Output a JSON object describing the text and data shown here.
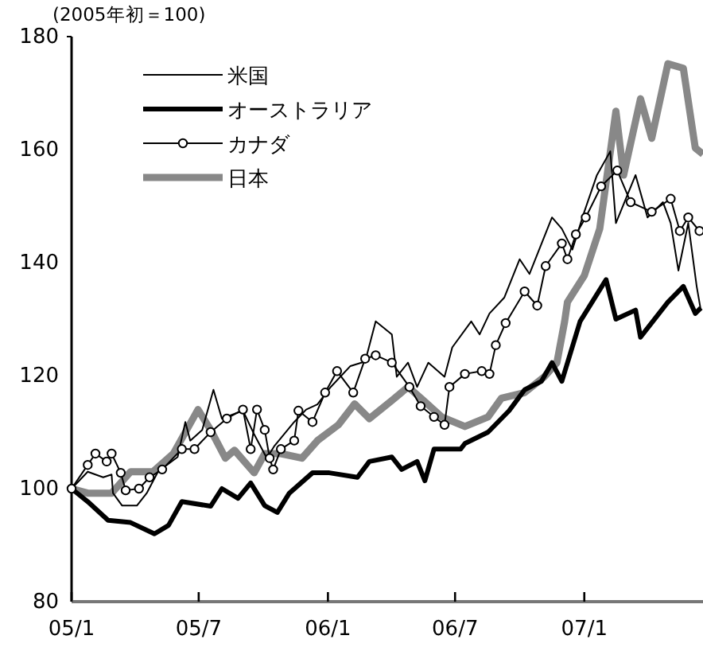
{
  "chart_data": {
    "type": "line",
    "ylabel": "(2005年初＝100)",
    "xlim": [
      "2005-01-01",
      "2007-06-19"
    ],
    "ylim": [
      80,
      180
    ],
    "yticks": [
      80,
      100,
      120,
      140,
      160,
      180
    ],
    "xticks": [
      {
        "value": "2005-01-01",
        "label": "05/1"
      },
      {
        "value": "2005-07-01",
        "label": "05/7"
      },
      {
        "value": "2006-01-01",
        "label": "06/1"
      },
      {
        "value": "2006-07-01",
        "label": "06/7"
      },
      {
        "value": "2007-01-01",
        "label": "07/1"
      }
    ],
    "grid": false,
    "legend": "top left",
    "line_style": "solid",
    "series": [
      {
        "name": "米国",
        "color": "#000000",
        "marker": "none",
        "x": [
          "2005-01-01",
          "2005-01-24",
          "2005-02-15",
          "2005-02-27",
          "2005-03-01",
          "2005-03-14",
          "2005-04-04",
          "2005-04-18",
          "2005-05-04",
          "2005-06-01",
          "2005-06-12",
          "2005-06-19",
          "2005-07-06",
          "2005-07-22",
          "2005-08-03",
          "2005-09-02",
          "2005-09-18",
          "2005-10-06",
          "2005-10-17",
          "2005-11-14",
          "2005-12-01",
          "2005-12-17",
          "2006-01-05",
          "2006-02-02",
          "2006-02-23",
          "2006-03-10",
          "2006-04-02",
          "2006-04-09",
          "2006-04-25",
          "2006-05-08",
          "2006-05-24",
          "2006-06-16",
          "2006-06-27",
          "2006-07-24",
          "2006-08-05",
          "2006-08-19",
          "2006-09-09",
          "2006-10-01",
          "2006-10-15",
          "2006-11-16",
          "2006-11-30",
          "2006-12-15",
          "2007-01-01",
          "2007-01-19",
          "2007-02-07",
          "2007-02-15",
          "2007-03-15",
          "2007-04-01",
          "2007-04-23",
          "2007-05-04",
          "2007-05-15",
          "2007-05-29",
          "2007-06-10",
          "2007-06-16"
        ],
        "values": [
          100,
          103,
          102,
          102.5,
          99.2,
          97,
          97,
          99.2,
          103,
          105.6,
          111.8,
          108.5,
          110.4,
          117.5,
          112.4,
          113.8,
          109.6,
          105.4,
          107.6,
          111.8,
          114,
          114.9,
          118,
          121.7,
          122.5,
          129.6,
          127.3,
          119.8,
          122.3,
          118,
          122.3,
          119.8,
          125,
          129.6,
          127.3,
          131,
          133.8,
          140.6,
          138,
          148,
          146,
          142.3,
          149,
          155.5,
          159.7,
          147,
          155.5,
          148,
          150.7,
          147,
          138.6,
          147,
          135.8,
          131.5
        ]
      },
      {
        "name": "オーストラリア",
        "color": "#000000",
        "marker": "none",
        "x": [
          "2005-01-01",
          "2005-01-24",
          "2005-02-22",
          "2005-03-26",
          "2005-04-29",
          "2005-05-19",
          "2005-06-07",
          "2005-07-18",
          "2005-08-03",
          "2005-08-26",
          "2005-09-13",
          "2005-10-03",
          "2005-10-21",
          "2005-11-07",
          "2005-12-10",
          "2006-01-03",
          "2006-02-12",
          "2006-03-01",
          "2006-04-02",
          "2006-04-16",
          "2006-05-08",
          "2006-05-19",
          "2006-06-01",
          "2006-07-09",
          "2006-07-15",
          "2006-08-17",
          "2006-09-16",
          "2006-10-08",
          "2006-11-01",
          "2006-11-16",
          "2006-11-30",
          "2006-12-26",
          "2007-02-01",
          "2007-02-15",
          "2007-03-15",
          "2007-03-22",
          "2007-04-30",
          "2007-05-22",
          "2007-06-08",
          "2007-06-16"
        ],
        "values": [
          100,
          97.7,
          94.4,
          94,
          92,
          93.5,
          97.7,
          96.9,
          100,
          98.3,
          101,
          97,
          95.8,
          99.2,
          102.8,
          102.8,
          102,
          104.8,
          105.6,
          103.4,
          104.8,
          101.4,
          107,
          107,
          108,
          110,
          113.8,
          117.5,
          119,
          122.3,
          119,
          129.6,
          137,
          130,
          131.6,
          126.8,
          133,
          135.8,
          131,
          132
        ]
      },
      {
        "name": "カナダ",
        "color": "#000000",
        "marker": "circle",
        "x": [
          "2005-01-01",
          "2005-01-24",
          "2005-02-04",
          "2005-02-20",
          "2005-02-27",
          "2005-03-12",
          "2005-03-19",
          "2005-04-07",
          "2005-04-22",
          "2005-05-10",
          "2005-06-07",
          "2005-06-25",
          "2005-07-18",
          "2005-08-10",
          "2005-09-02",
          "2005-09-13",
          "2005-09-22",
          "2005-10-03",
          "2005-10-10",
          "2005-10-15",
          "2005-10-26",
          "2005-11-14",
          "2005-11-20",
          "2005-12-10",
          "2005-12-28",
          "2006-01-14",
          "2006-02-06",
          "2006-02-23",
          "2006-03-10",
          "2006-04-02",
          "2006-04-27",
          "2006-05-13",
          "2006-06-01",
          "2006-06-16",
          "2006-06-23",
          "2006-07-15",
          "2006-08-08",
          "2006-08-19",
          "2006-08-28",
          "2006-09-11",
          "2006-10-08",
          "2006-10-26",
          "2006-11-07",
          "2006-11-30",
          "2006-12-08",
          "2006-12-20",
          "2007-01-03",
          "2007-01-25",
          "2007-02-17",
          "2007-03-08",
          "2007-04-07",
          "2007-05-04",
          "2007-05-17",
          "2007-05-29",
          "2007-06-14"
        ],
        "values": [
          100,
          104.2,
          106.2,
          104.8,
          106.2,
          102.8,
          99.7,
          100,
          102,
          103.4,
          107,
          107,
          110,
          112.4,
          114,
          107,
          114,
          110.4,
          105.4,
          103.4,
          107,
          108.5,
          113.8,
          111.8,
          117,
          120.8,
          117,
          123,
          123.6,
          122.3,
          118,
          114.6,
          112.7,
          111.3,
          118,
          120.3,
          120.8,
          120.3,
          125.4,
          129.3,
          134.9,
          132.4,
          139.4,
          143.4,
          140.6,
          145,
          148,
          153.5,
          156.3,
          150.7,
          149,
          151.3,
          145.6,
          148,
          145.6
        ]
      },
      {
        "name": "日本",
        "color": "#888888",
        "marker": "none",
        "x": [
          "2005-01-01",
          "2005-01-24",
          "2005-02-27",
          "2005-03-26",
          "2005-04-27",
          "2005-05-26",
          "2005-06-30",
          "2005-07-18",
          "2005-08-08",
          "2005-08-21",
          "2005-09-18",
          "2005-10-03",
          "2005-10-26",
          "2005-11-25",
          "2005-12-17",
          "2006-01-16",
          "2006-02-08",
          "2006-03-01",
          "2006-04-02",
          "2006-04-25",
          "2006-05-17",
          "2006-06-12",
          "2006-07-15",
          "2006-08-17",
          "2006-09-05",
          "2006-10-08",
          "2006-11-05",
          "2006-11-23",
          "2006-12-04",
          "2006-12-08",
          "2007-01-01",
          "2007-01-23",
          "2007-02-15",
          "2007-02-26",
          "2007-03-22",
          "2007-04-07",
          "2007-04-30",
          "2007-05-22",
          "2007-06-08",
          "2007-06-19"
        ],
        "values": [
          100,
          99.2,
          99.2,
          103,
          103,
          106.2,
          114,
          110.4,
          105.4,
          106.8,
          102.8,
          106.2,
          106.2,
          105.4,
          108.5,
          111.3,
          115,
          112.4,
          115.6,
          118,
          115.6,
          112.7,
          111,
          112.7,
          116,
          117,
          119.8,
          122.3,
          129.6,
          133,
          137.7,
          146,
          166.8,
          155.5,
          169,
          162,
          175.2,
          174.4,
          160.3,
          159.2
        ]
      }
    ]
  }
}
